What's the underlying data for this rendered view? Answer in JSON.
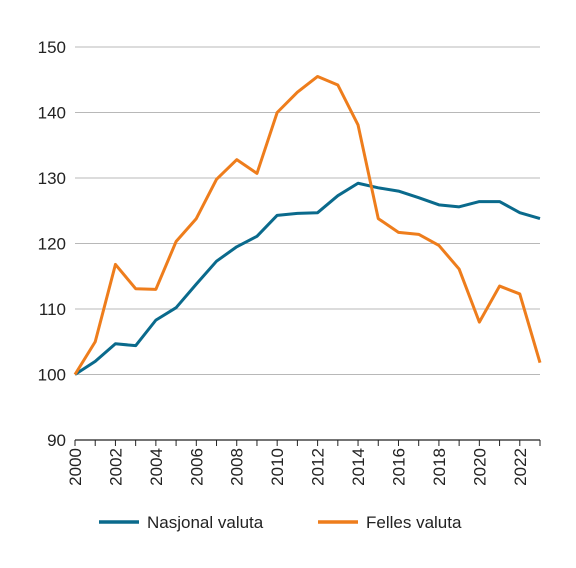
{
  "chart_data": {
    "type": "line",
    "x": [
      2000,
      2001,
      2002,
      2003,
      2004,
      2005,
      2006,
      2007,
      2008,
      2009,
      2010,
      2011,
      2012,
      2013,
      2014,
      2015,
      2016,
      2017,
      2018,
      2019,
      2020,
      2021,
      2022,
      2023
    ],
    "series": [
      {
        "name": "Nasjonal valuta",
        "color": "#0a6a8c",
        "values": [
          100,
          102,
          104.7,
          104.4,
          108.3,
          110.2,
          113.8,
          117.3,
          119.5,
          121.1,
          124.3,
          124.6,
          124.7,
          127.3,
          129.2,
          128.5,
          128,
          127,
          125.9,
          125.6,
          126.4,
          126.4,
          124.7,
          123.8
        ]
      },
      {
        "name": "Felles valuta",
        "color": "#ee7d1c",
        "values": [
          100,
          105,
          116.8,
          113.1,
          113,
          120.3,
          123.8,
          129.8,
          132.8,
          130.7,
          140,
          143.1,
          145.5,
          144.2,
          138.1,
          123.8,
          121.7,
          121.4,
          119.7,
          116.1,
          108,
          113.5,
          112.3,
          101.8
        ]
      }
    ],
    "ylim": [
      90,
      150
    ],
    "y_ticks": [
      "90",
      "100",
      "110",
      "120",
      "130",
      "140",
      "150"
    ],
    "x_tick_labels": [
      "2000",
      "2002",
      "2004",
      "2006",
      "2008",
      "2010",
      "2012",
      "2014",
      "2016",
      "2018",
      "2020",
      "2022"
    ],
    "grid": "horizontal",
    "legend_position": "bottom"
  }
}
